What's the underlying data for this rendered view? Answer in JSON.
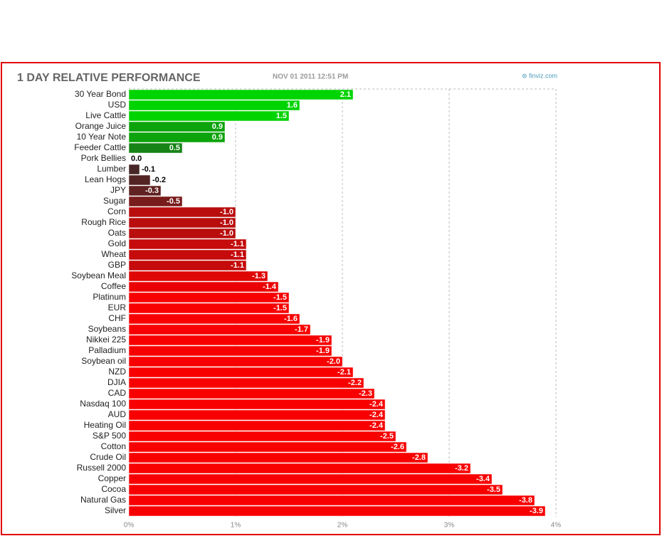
{
  "chart_data": {
    "type": "bar",
    "orientation": "horizontal",
    "title": "1 DAY RELATIVE PERFORMANCE",
    "subtitle": "NOV 01 2011 12:51 PM",
    "source": "finviz.com",
    "categories": [
      "30 Year Bond",
      "USD",
      "Live Cattle",
      "Orange Juice",
      "10 Year Note",
      "Feeder Cattle",
      "Pork Bellies",
      "Lumber",
      "Lean Hogs",
      "JPY",
      "Sugar",
      "Corn",
      "Rough Rice",
      "Oats",
      "Gold",
      "Wheat",
      "GBP",
      "Soybean Meal",
      "Coffee",
      "Platinum",
      "EUR",
      "CHF",
      "Soybeans",
      "Nikkei 225",
      "Palladium",
      "Soybean oil",
      "NZD",
      "DJIA",
      "CAD",
      "Nasdaq 100",
      "AUD",
      "Heating Oil",
      "S&P 500",
      "Cotton",
      "Crude Oil",
      "Russell 2000",
      "Copper",
      "Cocoa",
      "Natural Gas",
      "Silver"
    ],
    "values": [
      2.1,
      1.6,
      1.5,
      0.9,
      0.9,
      0.5,
      0.0,
      -0.1,
      -0.2,
      -0.3,
      -0.5,
      -1.0,
      -1.0,
      -1.0,
      -1.1,
      -1.1,
      -1.1,
      -1.3,
      -1.4,
      -1.5,
      -1.5,
      -1.6,
      -1.7,
      -1.9,
      -1.9,
      -2.0,
      -2.1,
      -2.2,
      -2.3,
      -2.4,
      -2.4,
      -2.4,
      -2.5,
      -2.6,
      -2.8,
      -3.2,
      -3.4,
      -3.5,
      -3.8,
      -3.9
    ],
    "value_labels": [
      "2.1",
      "1.6",
      "1.5",
      "0.9",
      "0.9",
      "0.5",
      "0.0",
      "-0.1",
      "-0.2",
      "-0.3",
      "-0.5",
      "-1.0",
      "-1.0",
      "-1.0",
      "-1.1",
      "-1.1",
      "-1.1",
      "-1.3",
      "-1.4",
      "-1.5",
      "-1.5",
      "-1.6",
      "-1.7",
      "-1.9",
      "-1.9",
      "-2.0",
      "-2.1",
      "-2.2",
      "-2.3",
      "-2.4",
      "-2.4",
      "-2.4",
      "-2.5",
      "-2.6",
      "-2.8",
      "-3.2",
      "-3.4",
      "-3.5",
      "-3.8",
      "-3.9"
    ],
    "xlim": [
      0,
      4
    ],
    "xticks": [
      {
        "value": 0,
        "label": "0%"
      },
      {
        "value": 1,
        "label": "1%"
      },
      {
        "value": 2,
        "label": "2%"
      },
      {
        "value": 3,
        "label": "3%"
      },
      {
        "value": 4,
        "label": "4%"
      }
    ],
    "grid": true,
    "colors": {
      "positive": [
        "#1f5a1f",
        "#00d400"
      ],
      "negative": [
        "#3a2a2a",
        "#f80000"
      ]
    }
  }
}
